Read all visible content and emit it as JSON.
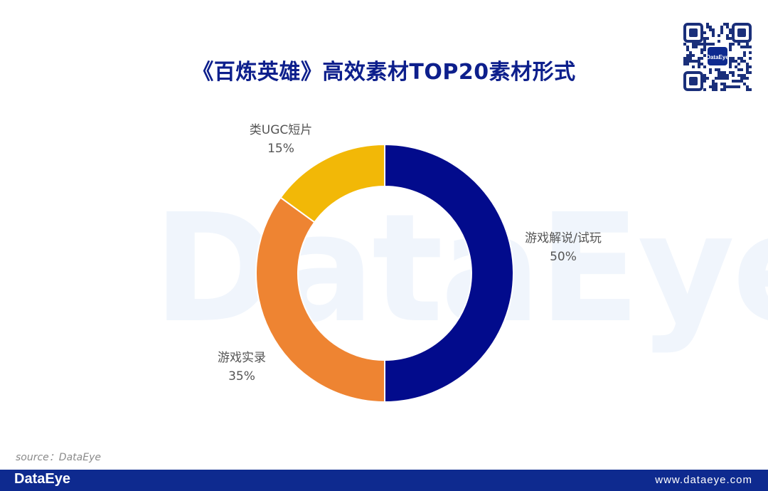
{
  "header": {
    "title": "《百炼英雄》高效素材TOP20素材形式",
    "qr_center_text": "DataEye"
  },
  "watermark": "DataEye",
  "chart_data": {
    "type": "pie",
    "title": "《百炼英雄》高效素材TOP20素材形式",
    "donut": true,
    "slices": [
      {
        "label": "游戏解说/试玩",
        "value": 50,
        "percent_label": "50%",
        "color": "#020b8c"
      },
      {
        "label": "游戏实录",
        "value": 35,
        "percent_label": "35%",
        "color": "#ee8432"
      },
      {
        "label": "类UGC短片",
        "value": 15,
        "percent_label": "15%",
        "color": "#f2b807"
      }
    ]
  },
  "footer": {
    "source": "source：DataEye",
    "logo": "DataEye",
    "url": "www.dataeye.com"
  }
}
